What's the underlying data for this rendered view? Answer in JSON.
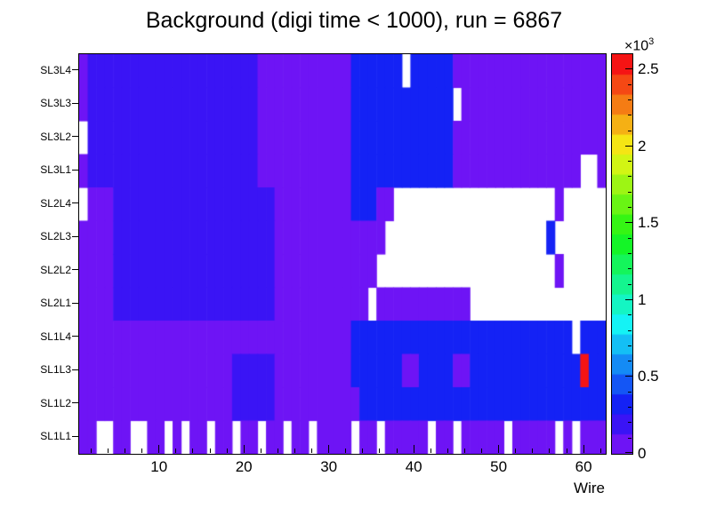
{
  "title": "Background (digi time < 1000), run = 6867",
  "axes": {
    "x": {
      "label": "Wire",
      "tick_labels": [
        "10",
        "20",
        "30",
        "40",
        "50",
        "60"
      ],
      "tick_values": [
        10,
        20,
        30,
        40,
        50,
        60
      ],
      "minor_step": 2,
      "range": [
        0.5,
        62.5
      ]
    },
    "y": {
      "labels_top_to_bottom": [
        "SL3L4",
        "SL3L3",
        "SL3L2",
        "SL3L1",
        "SL2L4",
        "SL2L3",
        "SL2L2",
        "SL2L1",
        "SL1L4",
        "SL1L3",
        "SL1L2",
        "SL1L1"
      ]
    },
    "z": {
      "tick_labels": [
        "0",
        "0.5",
        "1",
        "1.5",
        "2",
        "2.5"
      ],
      "tick_values": [
        0,
        500,
        1000,
        1500,
        2000,
        2500
      ],
      "minor_step": 100,
      "exponent_base": "×10",
      "exponent_power": "3",
      "axis_max": 2600
    }
  },
  "chart_data": {
    "type": "heatmap",
    "title": "Background (digi time < 1000), run = 6867",
    "xlabel": "Wire",
    "x_range": [
      0.5,
      62.5
    ],
    "n_wires": 62,
    "row_labels_top_to_bottom": [
      "SL3L4",
      "SL3L3",
      "SL3L2",
      "SL3L1",
      "SL2L4",
      "SL2L3",
      "SL2L2",
      "SL2L1",
      "SL1L4",
      "SL1L3",
      "SL1L2",
      "SL1L1"
    ],
    "zmax": 2600,
    "palette_bands": 20,
    "palette_hue_start": 264,
    "palette_hue_end": 0,
    "legend_values": {
      "a": 60,
      "b": 150,
      "c": 300,
      "R": 2550
    },
    "empty_char": ".",
    "grid_rows_top_to_bottom": [
      "abbbbbbbbbbbbbbbbbbbbaaaaaaaaaaacccccc.cccccaaaaaaaaaaaaaaaaaa",
      "abbbbbbbbbbbbbbbbbbbbaaaaaaaaaaacccccccccccc.aaaaaaaaaaaaaaaaa",
      ".bbbbbbbbbbbbbbbbbbbbaaaaaaaaaaaccccccccccccaaaaaaaaaaaaaaaaaa",
      "abbbbbbbbbbbbbbbbbbbbaaaaaaaaaaaccccccccccccaaaaaaaaaaaaaaa..a",
      ".aaabbbbbbbbbbbbbbbbbbbaaaaaaaaacccaa...................a.....",
      "aaaabbbbbbbbbbbbbbbbbbbaaaaaaaaaaaaa...................c......",
      "aaaabbbbbbbbbbbbbbbbbbbaaaaaaaaaaaa.....................a.....",
      "aaaabbbbbbbbbbbbbbbbbbbaaaaaaaaaaa.aaaaaaaaaaa................",
      "aaaaaaaaaaaaaaaaaaaaaaaaaaaaaaaacccccccccccccccccccccccccc.ccc",
      "aaaaaaaaaaaaaaaaaabbbbbaaaaaaaaaccccccaaccccaacccccccccccccRcc",
      "aaaaaaaaaaaaaaaaaabbbbbaaaaaaaaaaccccccccccccccccccccccccccccc",
      "aa..aa..aa.a.aa.aa.aa.aa.aa.aaaa.aa.aaaaa.aa.aaaaa.aaaaa.a.aaa"
    ]
  },
  "colors": {
    "frame": "#000000",
    "background": "#ffffff",
    "empty_bin": "#ffffff",
    "max_bin": "#ff0000"
  }
}
